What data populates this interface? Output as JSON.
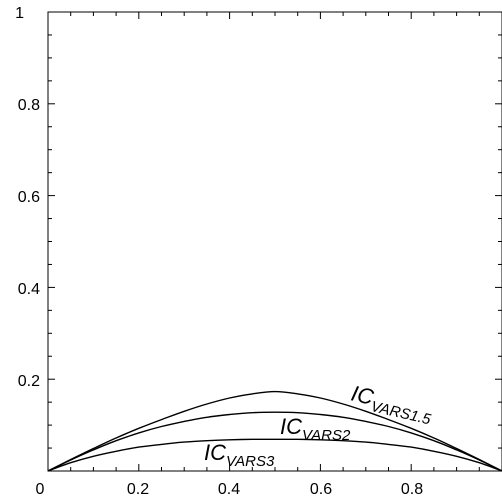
{
  "chart_data": {
    "type": "line",
    "title": "",
    "xlabel": "",
    "ylabel": "",
    "xlim": [
      0,
      1
    ],
    "ylim": [
      0,
      1
    ],
    "grid": false,
    "x_ticks": [
      0,
      0.2,
      0.4,
      0.6,
      0.8
    ],
    "x_tick_labels": [
      "0",
      "0.2",
      "0.4",
      "0.6",
      "0.8"
    ],
    "y_ticks": [
      0.2,
      0.4,
      0.6,
      0.8,
      1
    ],
    "y_tick_labels": [
      "0.2",
      "0.4",
      "0.6",
      "0.8",
      "1"
    ],
    "line_color": "#000000",
    "series": [
      {
        "name": "IC_VARS1.5",
        "label_main": "IC",
        "label_sub": "VARS1.5",
        "x": [
          0,
          0.05,
          0.1,
          0.15,
          0.2,
          0.25,
          0.3,
          0.35,
          0.4,
          0.45,
          0.5,
          0.55,
          0.6,
          0.65,
          0.7,
          0.75,
          0.8,
          0.85,
          0.9,
          0.95,
          1
        ],
        "y": [
          0,
          0.025,
          0.049,
          0.072,
          0.093,
          0.112,
          0.13,
          0.146,
          0.159,
          0.168,
          0.173,
          0.168,
          0.159,
          0.146,
          0.13,
          0.112,
          0.093,
          0.072,
          0.049,
          0.025,
          0
        ]
      },
      {
        "name": "IC_VARS2",
        "label_main": "IC",
        "label_sub": "VARS2",
        "x": [
          0,
          0.05,
          0.1,
          0.15,
          0.2,
          0.25,
          0.3,
          0.35,
          0.4,
          0.45,
          0.5,
          0.55,
          0.6,
          0.65,
          0.7,
          0.75,
          0.8,
          0.85,
          0.9,
          0.95,
          1
        ],
        "y": [
          0,
          0.024,
          0.046,
          0.066,
          0.083,
          0.097,
          0.108,
          0.117,
          0.123,
          0.127,
          0.128,
          0.127,
          0.123,
          0.117,
          0.108,
          0.097,
          0.083,
          0.066,
          0.046,
          0.024,
          0
        ]
      },
      {
        "name": "IC_VARS3",
        "label_main": "IC",
        "label_sub": "VARS3",
        "x": [
          0,
          0.05,
          0.1,
          0.15,
          0.2,
          0.25,
          0.3,
          0.35,
          0.4,
          0.45,
          0.5,
          0.55,
          0.6,
          0.65,
          0.7,
          0.75,
          0.8,
          0.85,
          0.9,
          0.95,
          1
        ],
        "y": [
          0,
          0.018,
          0.032,
          0.043,
          0.052,
          0.058,
          0.063,
          0.066,
          0.068,
          0.069,
          0.069,
          0.069,
          0.068,
          0.066,
          0.063,
          0.058,
          0.052,
          0.043,
          0.032,
          0.018,
          0
        ]
      }
    ]
  }
}
